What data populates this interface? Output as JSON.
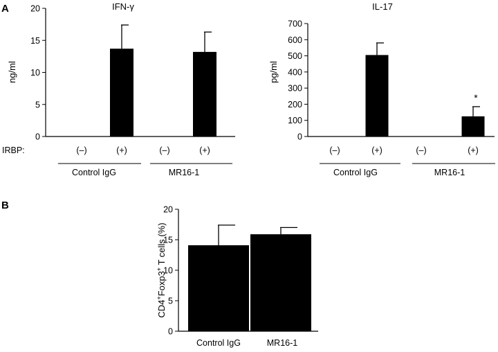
{
  "panels": {
    "a_label": "A",
    "b_label": "B"
  },
  "chart_data": [
    {
      "type": "bar",
      "title": "IFN-γ",
      "ylabel": "ng/ml",
      "ylim": [
        0,
        20
      ],
      "yticks": [
        "0",
        "5",
        "10",
        "15",
        "20"
      ],
      "row_label": "IRBP:",
      "categories": [
        "(–)",
        "(+)",
        "(–)",
        "(+)"
      ],
      "groups": [
        "Control IgG",
        "MR16-1"
      ],
      "values": [
        0,
        13.7,
        0,
        13.2
      ],
      "errors": [
        0,
        3.7,
        0,
        3.1
      ]
    },
    {
      "type": "bar",
      "title": "IL-17",
      "ylabel": "pg/ml",
      "ylim": [
        0,
        700
      ],
      "yticks": [
        "0",
        "100",
        "200",
        "300",
        "400",
        "500",
        "600",
        "700"
      ],
      "categories": [
        "(–)",
        "(+)",
        "(–)",
        "(+)"
      ],
      "groups": [
        "Control IgG",
        "MR16-1"
      ],
      "values": [
        0,
        505,
        0,
        125
      ],
      "errors": [
        0,
        75,
        0,
        60
      ],
      "annotation": "*"
    },
    {
      "type": "bar",
      "ylabel_main": "CD4",
      "ylabel_sup1": "+",
      "ylabel_mid": "Foxp3",
      "ylabel_sup2": "+",
      "ylabel_tail": " T cells (%)",
      "ylim": [
        0,
        20
      ],
      "yticks": [
        "0",
        "5",
        "10",
        "15",
        "20"
      ],
      "categories": [
        "Control IgG",
        "MR16-1"
      ],
      "values": [
        14.1,
        15.9
      ],
      "errors": [
        3.3,
        1.1
      ]
    }
  ]
}
